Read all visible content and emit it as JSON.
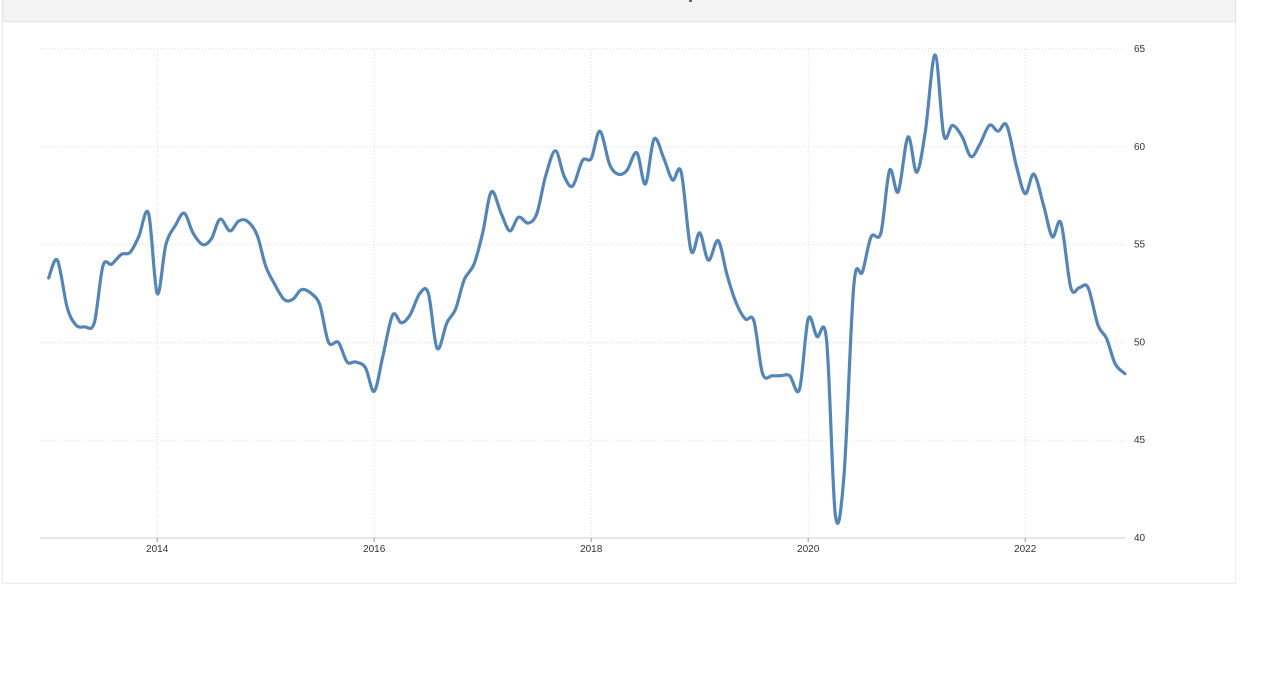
{
  "chart_data": {
    "type": "line",
    "title": "",
    "xlabel": "",
    "ylabel": "",
    "xlim": [
      2012.92,
      2022.92
    ],
    "ylim": [
      40,
      65
    ],
    "x_ticks": [
      "2014",
      "2016",
      "2018",
      "2020",
      "2022"
    ],
    "y_ticks": [
      "40",
      "45",
      "50",
      "55",
      "60",
      "65"
    ],
    "grid": true,
    "legend": "none",
    "color": "#5585b5",
    "series": [
      {
        "x": [
          2013.0,
          2013.08,
          2013.17,
          2013.25,
          2013.33,
          2013.42,
          2013.5,
          2013.58,
          2013.67,
          2013.75,
          2013.83,
          2013.92,
          2014.0,
          2014.08,
          2014.17,
          2014.25,
          2014.33,
          2014.42,
          2014.5,
          2014.58,
          2014.67,
          2014.75,
          2014.83,
          2014.92,
          2015.0,
          2015.08,
          2015.17,
          2015.25,
          2015.33,
          2015.42,
          2015.5,
          2015.58,
          2015.67,
          2015.75,
          2015.83,
          2015.92,
          2016.0,
          2016.08,
          2016.17,
          2016.25,
          2016.33,
          2016.42,
          2016.5,
          2016.58,
          2016.67,
          2016.75,
          2016.83,
          2016.92,
          2017.0,
          2017.08,
          2017.17,
          2017.25,
          2017.33,
          2017.42,
          2017.5,
          2017.58,
          2017.67,
          2017.75,
          2017.83,
          2017.92,
          2018.0,
          2018.08,
          2018.17,
          2018.25,
          2018.33,
          2018.42,
          2018.5,
          2018.58,
          2018.67,
          2018.75,
          2018.83,
          2018.92,
          2019.0,
          2019.08,
          2019.17,
          2019.25,
          2019.33,
          2019.42,
          2019.5,
          2019.58,
          2019.67,
          2019.75,
          2019.83,
          2019.92,
          2020.0,
          2020.08,
          2020.17,
          2020.25,
          2020.33,
          2020.42,
          2020.5,
          2020.58,
          2020.67,
          2020.75,
          2020.83,
          2020.92,
          2021.0,
          2021.08,
          2021.17,
          2021.25,
          2021.33,
          2021.42,
          2021.5,
          2021.58,
          2021.67,
          2021.75,
          2021.83,
          2021.92,
          2022.0,
          2022.08,
          2022.17,
          2022.25,
          2022.33,
          2022.42,
          2022.5,
          2022.58,
          2022.67,
          2022.75,
          2022.83,
          2022.92
        ],
        "y": [
          53.3,
          54.2,
          51.8,
          50.9,
          50.8,
          51.0,
          53.9,
          54.0,
          54.5,
          54.6,
          55.4,
          56.6,
          52.5,
          55.0,
          56.0,
          56.6,
          55.6,
          55.0,
          55.3,
          56.3,
          55.7,
          56.2,
          56.2,
          55.5,
          53.9,
          53.0,
          52.2,
          52.2,
          52.7,
          52.5,
          51.9,
          50.0,
          50.0,
          49.0,
          49.0,
          48.7,
          47.5,
          49.3,
          51.4,
          51.0,
          51.4,
          52.5,
          52.5,
          49.7,
          51.0,
          51.7,
          53.2,
          54.0,
          55.6,
          57.7,
          56.6,
          55.7,
          56.4,
          56.1,
          56.6,
          58.5,
          59.8,
          58.5,
          58.0,
          59.3,
          59.4,
          60.8,
          59.1,
          58.6,
          58.8,
          59.7,
          58.1,
          60.4,
          59.4,
          58.3,
          58.7,
          54.7,
          55.6,
          54.2,
          55.2,
          53.5,
          52.1,
          51.2,
          51.1,
          48.4,
          48.3,
          48.3,
          48.3,
          47.6,
          51.2,
          50.3,
          50.1,
          41.2,
          43.2,
          52.9,
          53.6,
          55.4,
          55.6,
          58.8,
          57.7,
          60.5,
          58.7,
          60.8,
          64.7,
          60.6,
          61.1,
          60.5,
          59.5,
          60.1,
          61.1,
          60.8,
          61.1,
          59.0,
          57.6,
          58.6,
          57.0,
          55.4,
          56.1,
          52.8,
          52.8,
          52.8,
          50.9,
          50.2,
          48.9,
          48.4
        ]
      }
    ]
  }
}
